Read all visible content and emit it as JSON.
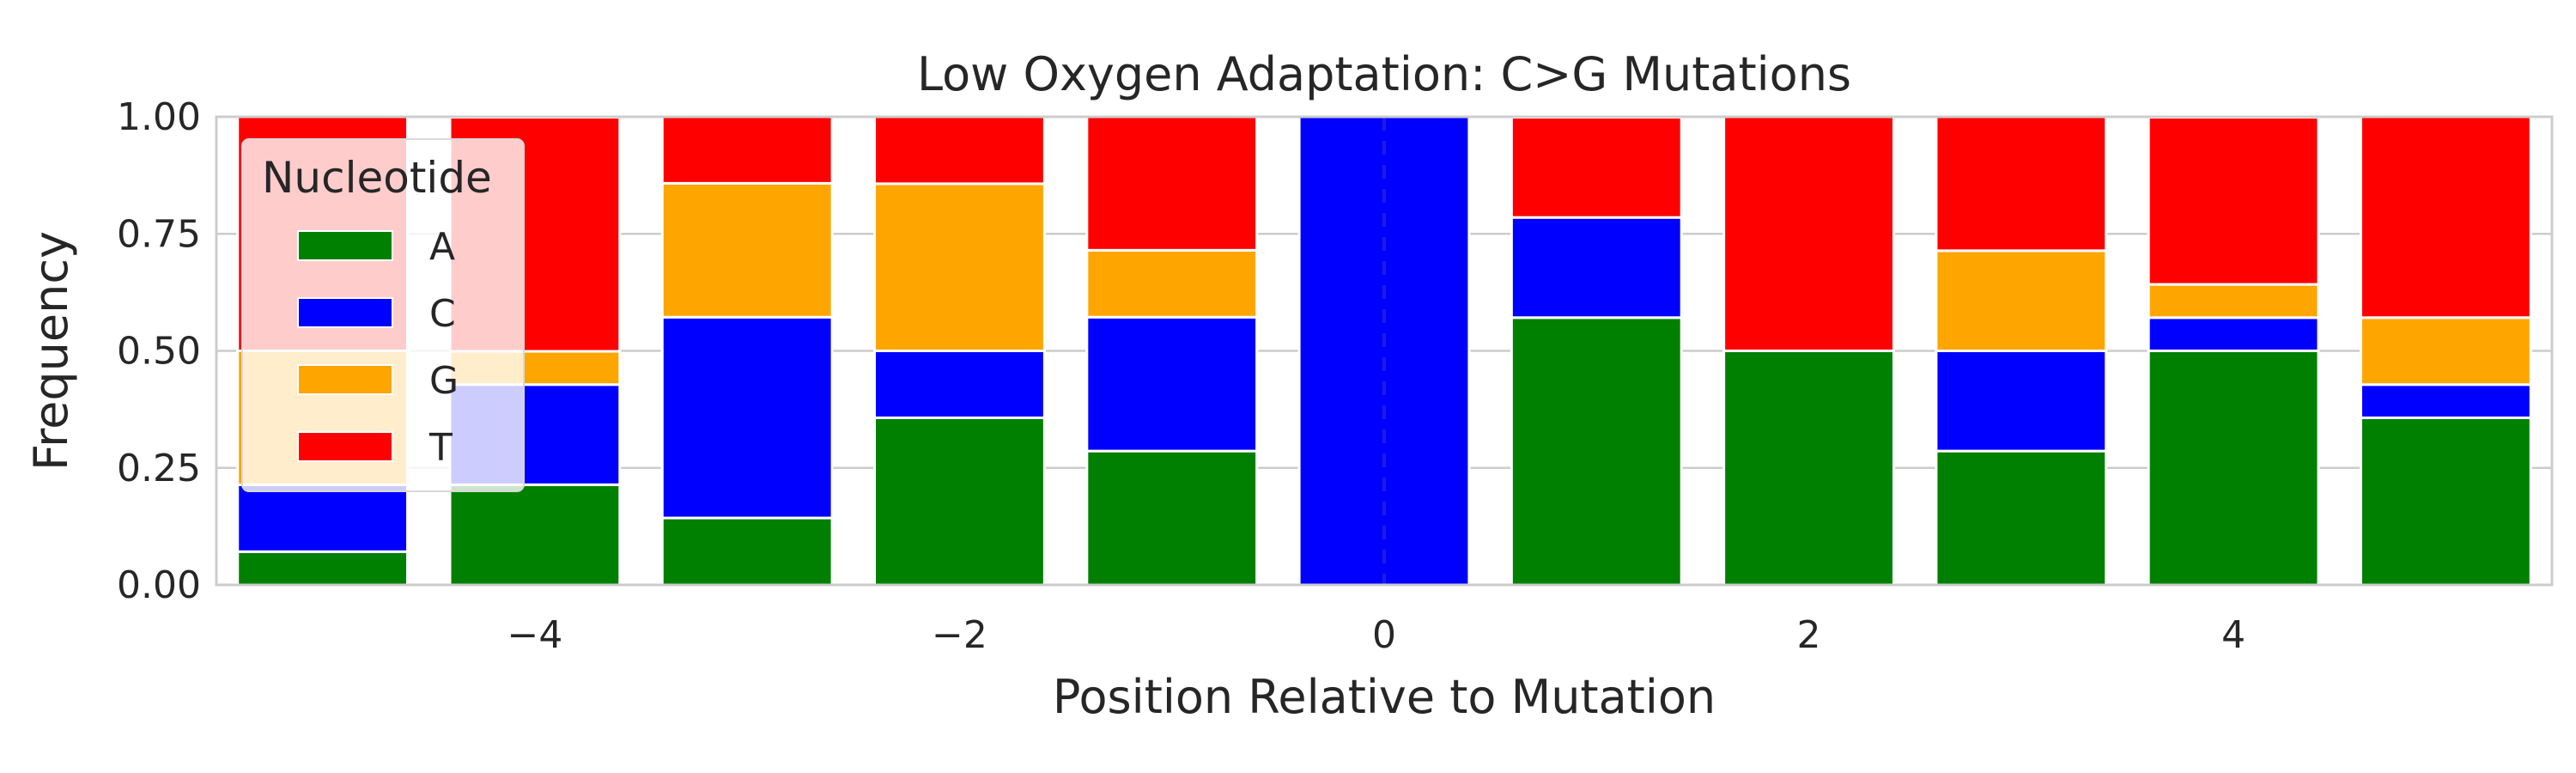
{
  "chart_data": {
    "type": "bar",
    "stacked": true,
    "title": "Low Oxygen Adaptation: C>G Mutations",
    "xlabel": "Position Relative to Mutation",
    "ylabel": "Frequency",
    "x": [
      -5,
      -4,
      -3,
      -2,
      -1,
      0,
      1,
      2,
      3,
      4,
      5
    ],
    "xlim": [
      -5.5,
      5.5
    ],
    "ylim": [
      0,
      1
    ],
    "xticks": [
      -4,
      -2,
      0,
      2,
      4
    ],
    "xtick_labels": [
      "−4",
      "−2",
      "0",
      "2",
      "4"
    ],
    "yticks": [
      0,
      0.25,
      0.5,
      0.75,
      1
    ],
    "ytick_labels": [
      "0.00",
      "0.25",
      "0.50",
      "0.75",
      "1.00"
    ],
    "grid": true,
    "legend": {
      "title": "Nucleotide",
      "placement": "upper-left"
    },
    "mutation_line": {
      "x": 0,
      "style": "dashed"
    },
    "series": [
      {
        "name": "A",
        "color": "#008000",
        "values": [
          0.071,
          0.214,
          0.143,
          0.357,
          0.286,
          0.0,
          0.571,
          0.5,
          0.286,
          0.5,
          0.357
        ]
      },
      {
        "name": "C",
        "color": "#0000ff",
        "values": [
          0.143,
          0.214,
          0.429,
          0.143,
          0.286,
          1.0,
          0.214,
          0.0,
          0.214,
          0.071,
          0.071
        ]
      },
      {
        "name": "G",
        "color": "#ffa500",
        "values": [
          0.286,
          0.071,
          0.286,
          0.357,
          0.143,
          0.0,
          0.0,
          0.0,
          0.214,
          0.071,
          0.143
        ]
      },
      {
        "name": "T",
        "color": "#ff0000",
        "values": [
          0.5,
          0.5,
          0.143,
          0.143,
          0.286,
          0.0,
          0.214,
          0.5,
          0.286,
          0.357,
          0.429
        ]
      }
    ]
  }
}
